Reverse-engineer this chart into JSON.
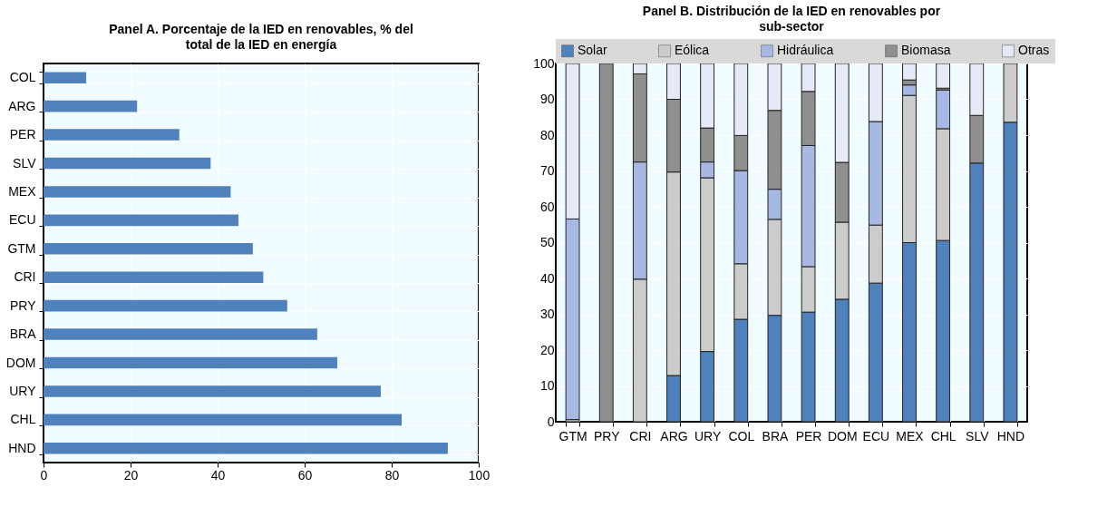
{
  "chart_data": [
    {
      "type": "bar",
      "orientation": "horizontal",
      "title": "Panel A. Porcentaje de la IED en renovables, % del total de la IED en energía",
      "categories": [
        "COL",
        "ARG",
        "PER",
        "SLV",
        "MEX",
        "ECU",
        "GTM",
        "CRI",
        "PRY",
        "BRA",
        "DOM",
        "URY",
        "CHL",
        "HND"
      ],
      "values": [
        9.8,
        21.5,
        31.2,
        38.4,
        43,
        44.8,
        48.1,
        50.5,
        56,
        62.9,
        67.5,
        77.5,
        82.3,
        92.9
      ],
      "color": "#4f81bd",
      "xlim": [
        0,
        100
      ],
      "xticks": [
        0,
        20,
        40,
        60,
        80,
        100
      ],
      "grid": true
    },
    {
      "type": "bar",
      "stacked": true,
      "title": "Panel B. Distribución de la IED en renovables por sub-sector",
      "categories": [
        "GTM",
        "PRY",
        "CRI",
        "ARG",
        "URY",
        "COL",
        "BRA",
        "PER",
        "DOM",
        "ECU",
        "MEX",
        "CHL",
        "SLV",
        "HND"
      ],
      "series": [
        {
          "name": "Solar",
          "color": "#4f81bd",
          "values": [
            null,
            null,
            null,
            12.9,
            19.6,
            28.6,
            29.7,
            30.6,
            34.2,
            38.7,
            50,
            50.6,
            72.2,
            83.6
          ]
        },
        {
          "name": "Eólica",
          "color": "#cccccc",
          "values": [
            0.6,
            null,
            39.8,
            56.8,
            48.5,
            15.5,
            26.8,
            12.7,
            21.5,
            16.2,
            41.1,
            31.2,
            null,
            16.4
          ]
        },
        {
          "name": "Hidráulica",
          "color": "#a7b8e4",
          "values": [
            56,
            null,
            32.7,
            null,
            4.4,
            26,
            8.4,
            33.8,
            null,
            28.9,
            2.9,
            10.8,
            null,
            null
          ]
        },
        {
          "name": "Biomasa",
          "color": "#8f8f8f",
          "values": [
            null,
            100,
            24.6,
            20.3,
            9.5,
            9.8,
            22,
            15.1,
            16.7,
            null,
            1.4,
            0.5,
            13.3,
            null
          ]
        },
        {
          "name": "Otras",
          "color": "#e6eaf7",
          "values": [
            43.4,
            null,
            2.9,
            10,
            18,
            20.1,
            13.1,
            7.8,
            27.6,
            16.2,
            4.6,
            6.9,
            14.5,
            null
          ]
        }
      ],
      "ylim": [
        0,
        100
      ],
      "yticks": [
        0,
        10,
        20,
        30,
        40,
        50,
        60,
        70,
        80,
        90,
        100
      ],
      "grid": true,
      "legend": "top"
    }
  ]
}
